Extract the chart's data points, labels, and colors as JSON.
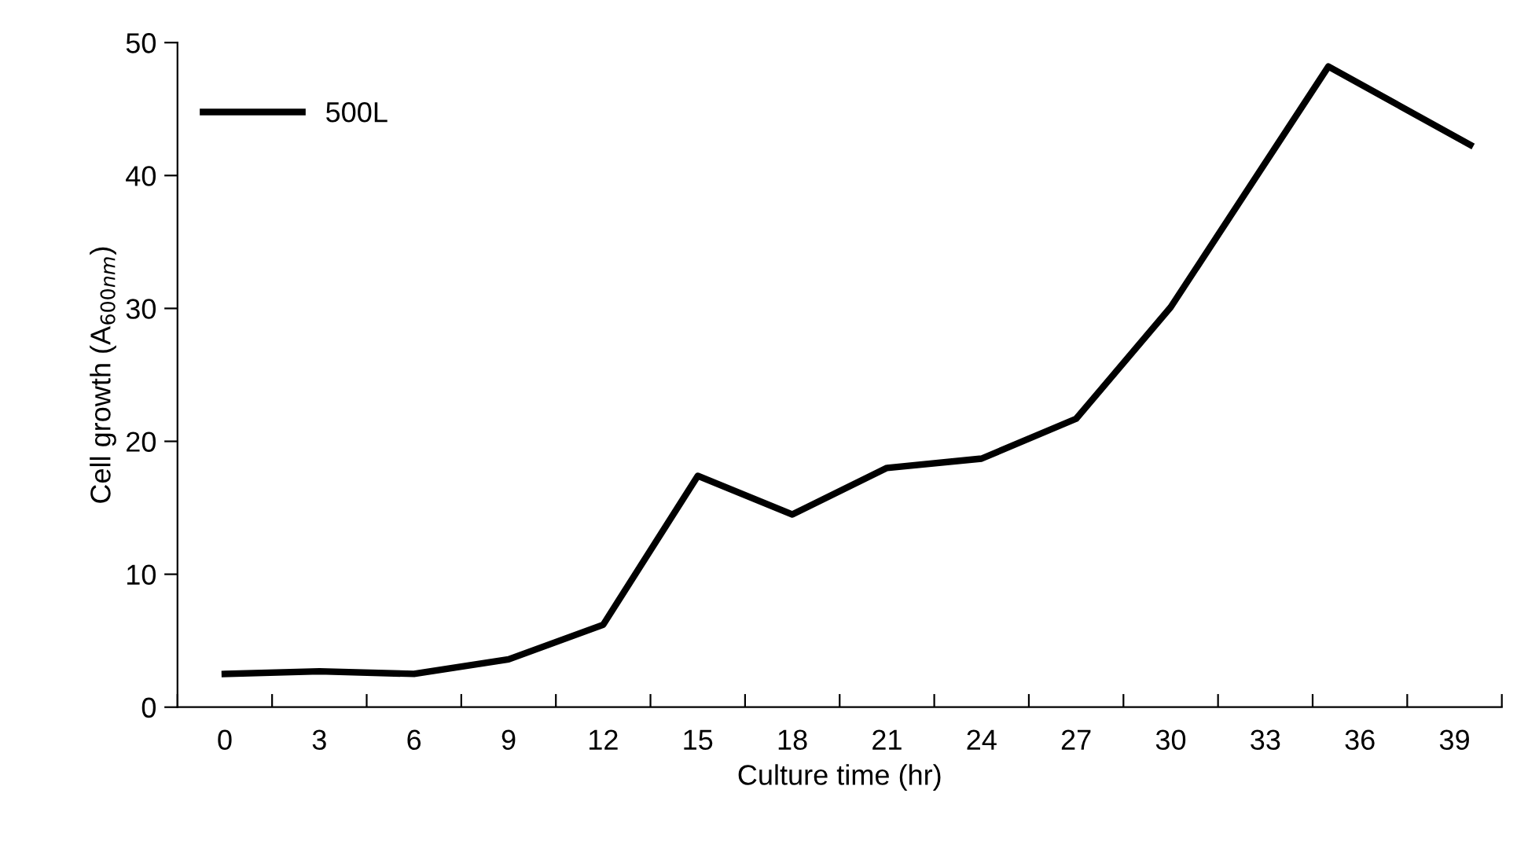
{
  "chart_data": {
    "type": "line",
    "xlabel": "Culture time (hr)",
    "ylabel": "Cell growth (A$_{600nm}$)",
    "x": [
      0,
      3,
      6,
      9,
      12,
      15,
      18,
      21,
      24,
      27,
      30,
      35,
      39.5
    ],
    "series": [
      {
        "name": "500L",
        "color": "#000000",
        "values": [
          2.5,
          2.7,
          2.5,
          3.6,
          6.2,
          17.4,
          14.5,
          18.0,
          18.7,
          21.7,
          30.1,
          48.2,
          42.3
        ]
      }
    ],
    "xlim": [
      -1.5,
      40.5
    ],
    "xticks": [
      {
        "value": -1.5,
        "label": null
      },
      0,
      {
        "value": 1.5,
        "label": null
      },
      3,
      {
        "value": 4.5,
        "label": null
      },
      6,
      {
        "value": 7.5,
        "label": null
      },
      9,
      {
        "value": 10.5,
        "label": null
      },
      12,
      {
        "value": 13.5,
        "label": null
      },
      15,
      {
        "value": 16.5,
        "label": null
      },
      18,
      {
        "value": 19.5,
        "label": null
      },
      21,
      {
        "value": 22.5,
        "label": null
      },
      24,
      {
        "value": 25.5,
        "label": null
      },
      27,
      {
        "value": 28.5,
        "label": null
      },
      30,
      {
        "value": 31.5,
        "label": null
      },
      33,
      {
        "value": 34.5,
        "label": null
      },
      36,
      {
        "value": 37.5,
        "label": null
      },
      39,
      {
        "value": 40.5,
        "label": null
      }
    ],
    "ylim": [
      0,
      50
    ],
    "yticks": [
      0,
      10,
      20,
      30,
      40,
      50
    ],
    "grid": false,
    "legend": "top left",
    "marker": "none",
    "line_style": "solid"
  }
}
